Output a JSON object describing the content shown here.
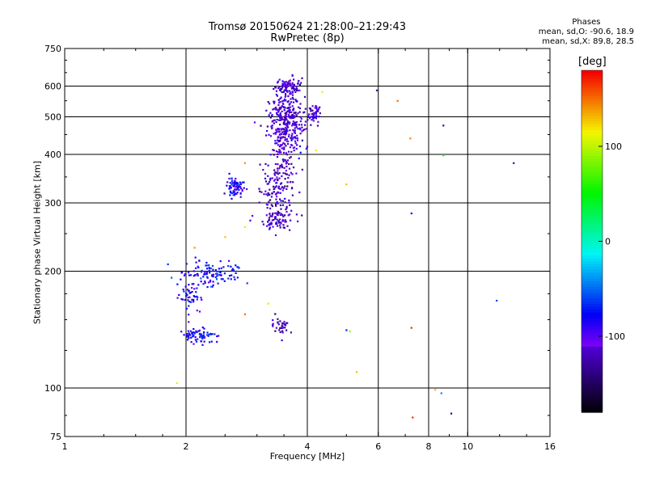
{
  "header": {
    "title_line1": "Tromsø 20150624 21:28:00–21:29:43",
    "title_line2": "RwPretec (8p)"
  },
  "phase_stats": {
    "title": "Phases",
    "line_o": "mean, sd,O: -90.6, 18.9",
    "line_x": "mean, sd,X:  89.8, 28.5"
  },
  "colorbar": {
    "title": "[deg]",
    "range": [
      -180,
      180
    ],
    "ticks": [
      100,
      0,
      -100
    ],
    "tick_labels": [
      "100",
      "0",
      "-100"
    ]
  },
  "chart_data": {
    "type": "scatter",
    "title": "Tromsø 20150624 21:28:00–21:29:43",
    "subtitle": "RwPretec (8p)",
    "xlabel": "Frequency [MHz]",
    "ylabel": "Stationary phase Virtual Height [km]",
    "xscale": "log",
    "yscale": "log",
    "xlim": [
      1,
      16
    ],
    "ylim": [
      75,
      750
    ],
    "x_ticks": [
      1,
      2,
      4,
      6,
      8,
      10,
      16
    ],
    "x_tick_labels": [
      "1",
      "2",
      "4",
      "6",
      "8",
      "10",
      "16"
    ],
    "y_ticks": [
      75,
      100,
      200,
      300,
      400,
      500,
      600,
      750
    ],
    "y_tick_labels": [
      "75",
      "100",
      "200",
      "300",
      "400",
      "500",
      "600",
      "750"
    ],
    "grid": true,
    "clusters": [
      {
        "x": 3.55,
        "y": 470,
        "sx": 0.28,
        "sy": 80,
        "n": 360,
        "phase": -110
      },
      {
        "x": 3.6,
        "y": 600,
        "sx": 0.2,
        "sy": 25,
        "n": 90,
        "phase": -110
      },
      {
        "x": 4.15,
        "y": 510,
        "sx": 0.15,
        "sy": 25,
        "n": 50,
        "phase": -105
      },
      {
        "x": 3.4,
        "y": 330,
        "sx": 0.3,
        "sy": 40,
        "n": 130,
        "phase": -115
      },
      {
        "x": 3.35,
        "y": 270,
        "sx": 0.3,
        "sy": 15,
        "n": 80,
        "phase": -112
      },
      {
        "x": 2.65,
        "y": 330,
        "sx": 0.1,
        "sy": 18,
        "n": 80,
        "phase": -85
      },
      {
        "x": 2.3,
        "y": 195,
        "sx": 0.32,
        "sy": 14,
        "n": 110,
        "phase": -80
      },
      {
        "x": 2.05,
        "y": 172,
        "sx": 0.1,
        "sy": 12,
        "n": 45,
        "phase": -80
      },
      {
        "x": 2.15,
        "y": 137,
        "sx": 0.2,
        "sy": 5,
        "n": 75,
        "phase": -80
      },
      {
        "x": 3.45,
        "y": 145,
        "sx": 0.18,
        "sy": 6,
        "n": 35,
        "phase": -118
      }
    ],
    "scattered_points": [
      {
        "x": 5.95,
        "y": 585,
        "phase": -120
      },
      {
        "x": 6.7,
        "y": 550,
        "phase": 150
      },
      {
        "x": 7.2,
        "y": 440,
        "phase": 145
      },
      {
        "x": 8.7,
        "y": 475,
        "phase": -130
      },
      {
        "x": 8.7,
        "y": 398,
        "phase": 35
      },
      {
        "x": 13.0,
        "y": 380,
        "phase": -120
      },
      {
        "x": 5.0,
        "y": 335,
        "phase": 130
      },
      {
        "x": 7.25,
        "y": 282,
        "phase": -80
      },
      {
        "x": 11.8,
        "y": 168,
        "phase": -60
      },
      {
        "x": 5.0,
        "y": 141,
        "phase": -70
      },
      {
        "x": 5.1,
        "y": 140,
        "phase": 90
      },
      {
        "x": 7.25,
        "y": 143,
        "phase": 170
      },
      {
        "x": 5.3,
        "y": 110,
        "phase": 130
      },
      {
        "x": 8.3,
        "y": 99,
        "phase": 130
      },
      {
        "x": 8.6,
        "y": 97,
        "phase": -40
      },
      {
        "x": 9.1,
        "y": 86,
        "phase": -140
      },
      {
        "x": 7.3,
        "y": 84,
        "phase": 170
      },
      {
        "x": 1.9,
        "y": 103,
        "phase": 110
      },
      {
        "x": 3.2,
        "y": 165,
        "phase": 120
      },
      {
        "x": 2.8,
        "y": 155,
        "phase": 150
      },
      {
        "x": 2.1,
        "y": 230,
        "phase": 140
      },
      {
        "x": 2.8,
        "y": 260,
        "phase": 110
      },
      {
        "x": 2.5,
        "y": 245,
        "phase": 130
      },
      {
        "x": 4.2,
        "y": 410,
        "phase": 120
      },
      {
        "x": 4.35,
        "y": 580,
        "phase": 110
      },
      {
        "x": 2.8,
        "y": 380,
        "phase": 140
      }
    ]
  }
}
